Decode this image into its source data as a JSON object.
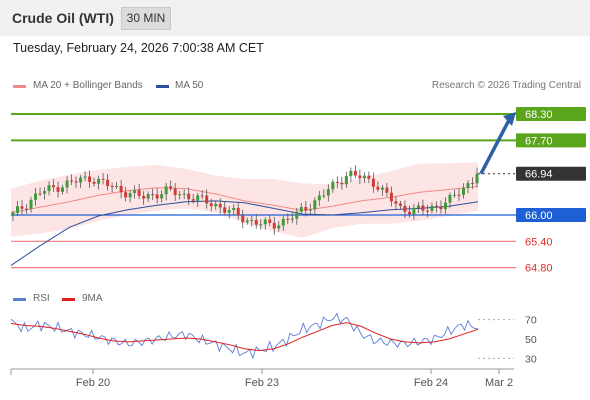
{
  "header": {
    "title": "Crude Oil (WTI)",
    "timeframe": "30 MIN",
    "datetime": "Tuesday, February 24, 2026 7:00:38 AM CET"
  },
  "legend": {
    "ma20_label": "MA 20 + Bollinger Bands",
    "ma50_label": "MA 50",
    "copyright": "Research © 2026 Trading Central"
  },
  "rsi_legend": {
    "rsi_label": "RSI",
    "ma_label": "9MA"
  },
  "colors": {
    "ma20": "#f08a8a",
    "ma50": "#2e4f9a",
    "bollinger_fill": "#fde0e0",
    "target_green": "#5aa51b",
    "pivot_blue": "#1f5fd6",
    "support_red": "#f07a7a",
    "last_price": "#333333",
    "candle_up": "#3f9a3a",
    "candle_down": "#d23a3a",
    "arrow": "#2d5fa5",
    "rsi": "#5a7ed8",
    "rsi_ma": "#e02020"
  },
  "chart_data": [
    {
      "type": "candlestick",
      "title": "Crude Oil (WTI)",
      "timeframe": "30 MIN",
      "x_ticks": [
        "Feb 20",
        "Feb 23",
        "Feb 24",
        "Mar 2"
      ],
      "ylim": [
        64.45,
        68.62
      ],
      "grid": false,
      "price_levels": [
        {
          "label": "68.30",
          "value": 68.3,
          "kind": "target"
        },
        {
          "label": "67.70",
          "value": 67.7,
          "kind": "target"
        },
        {
          "label": "66.94",
          "value": 66.94,
          "kind": "last"
        },
        {
          "label": "66.00",
          "value": 66.0,
          "kind": "pivot"
        },
        {
          "label": "65.40",
          "value": 65.4,
          "kind": "support"
        },
        {
          "label": "64.80",
          "value": 64.8,
          "kind": "support"
        }
      ],
      "series": [
        {
          "name": "MA 20 + Bollinger Bands",
          "values": [
            66.05,
            66.18,
            66.3,
            66.45,
            66.55,
            66.62,
            66.6,
            66.48,
            66.32,
            66.22,
            66.1,
            66.2,
            66.32,
            66.4,
            66.52,
            66.58,
            66.65
          ]
        },
        {
          "name": "MA 50",
          "values": [
            64.85,
            65.3,
            65.72,
            65.98,
            66.12,
            66.22,
            66.3,
            66.32,
            66.28,
            66.15,
            66.02,
            66.0,
            66.05,
            66.12,
            66.15,
            66.2,
            66.3
          ]
        }
      ],
      "price_path": [
        66.0,
        66.5,
        66.7,
        66.85,
        66.6,
        66.4,
        66.55,
        66.4,
        66.2,
        65.9,
        65.75,
        66.0,
        66.45,
        66.95,
        66.75,
        66.15,
        66.1,
        66.35,
        66.9
      ],
      "arrow": {
        "from": 66.94,
        "to": 68.3
      }
    },
    {
      "type": "line",
      "title": "RSI",
      "ylim": [
        20,
        80
      ],
      "y_ticks": [
        70,
        50,
        30
      ],
      "series": [
        {
          "name": "RSI",
          "values": [
            68,
            60,
            65,
            62,
            58,
            55,
            52,
            48,
            45,
            47,
            50,
            53,
            55,
            49,
            45,
            40,
            35,
            38,
            42,
            50,
            60,
            65,
            72,
            70,
            55,
            48,
            46,
            45,
            47,
            50,
            58,
            65,
            62
          ]
        },
        {
          "name": "9MA",
          "values": [
            66,
            64,
            63,
            61,
            58,
            55,
            51,
            48,
            47,
            48,
            49,
            50,
            51,
            50,
            47,
            44,
            40,
            38,
            40,
            45,
            52,
            58,
            64,
            67,
            63,
            56,
            50,
            47,
            46,
            47,
            50,
            55,
            60
          ]
        }
      ]
    }
  ]
}
